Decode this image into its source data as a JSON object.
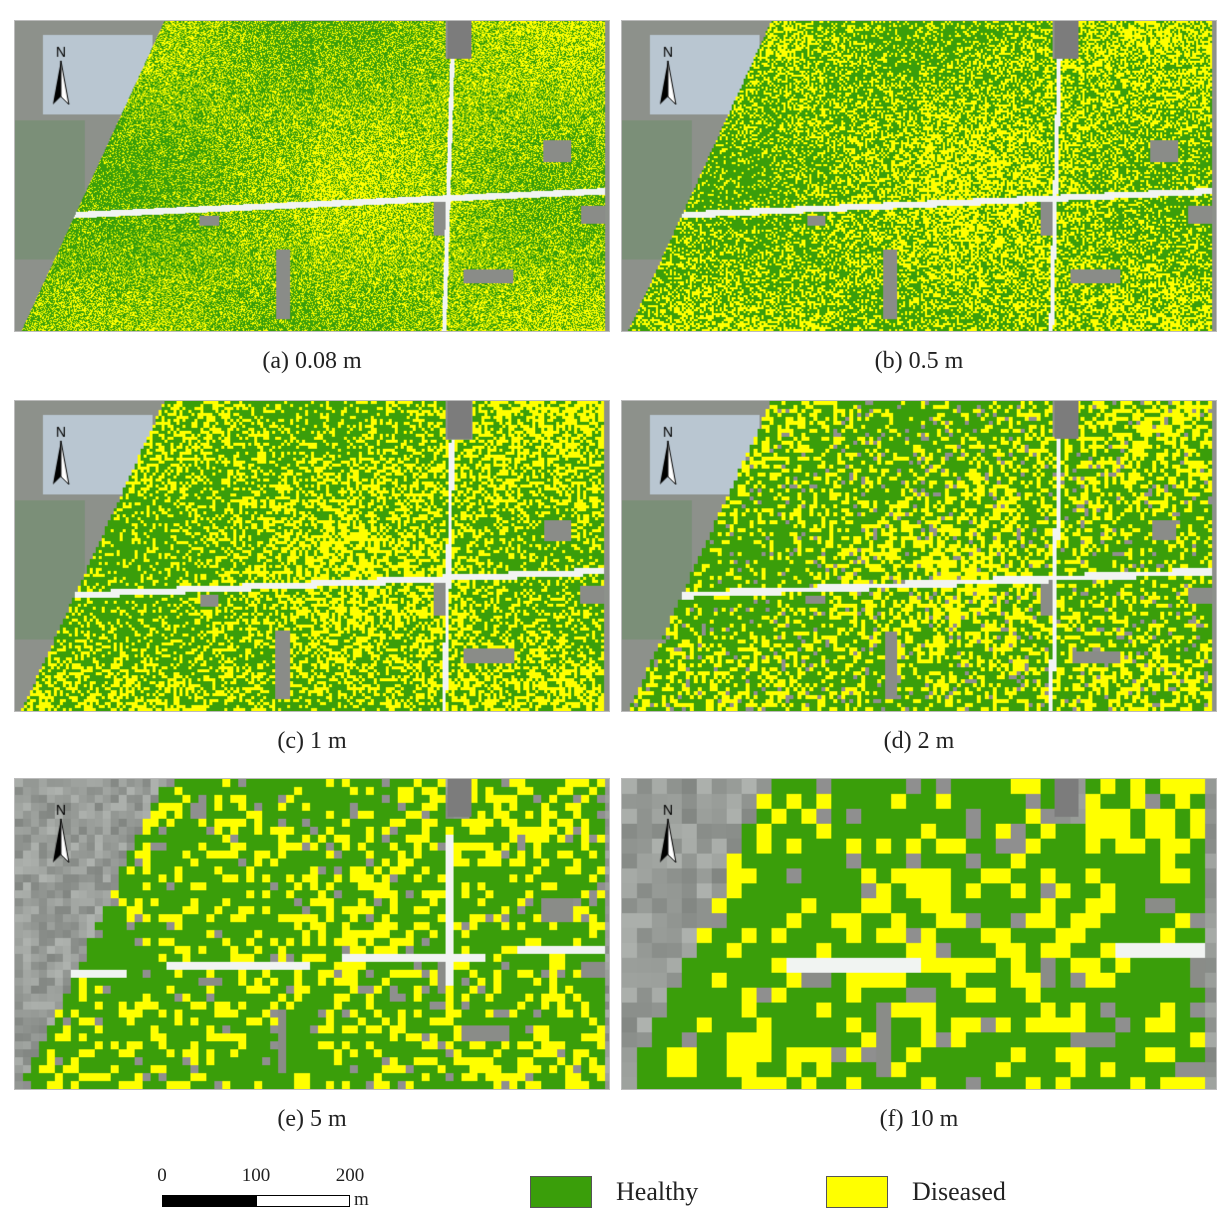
{
  "panels": [
    {
      "id": "a",
      "caption": "(a) 0.08 m",
      "resolution_m": 0.08
    },
    {
      "id": "b",
      "caption": "(b) 0.5 m",
      "resolution_m": 0.5
    },
    {
      "id": "c",
      "caption": "(c) 1 m",
      "resolution_m": 1
    },
    {
      "id": "d",
      "caption": "(d) 2 m",
      "resolution_m": 2
    },
    {
      "id": "e",
      "caption": "(e) 5 m",
      "resolution_m": 5
    },
    {
      "id": "f",
      "caption": "(f) 10 m",
      "resolution_m": 10
    }
  ],
  "north_label": "N",
  "scale_bar": {
    "ticks": [
      "0",
      "100",
      "200"
    ],
    "unit": "m"
  },
  "legend": [
    {
      "label": "Healthy",
      "color": "#3a9e0a"
    },
    {
      "label": "Diseased",
      "color": "#ffff00"
    }
  ]
}
